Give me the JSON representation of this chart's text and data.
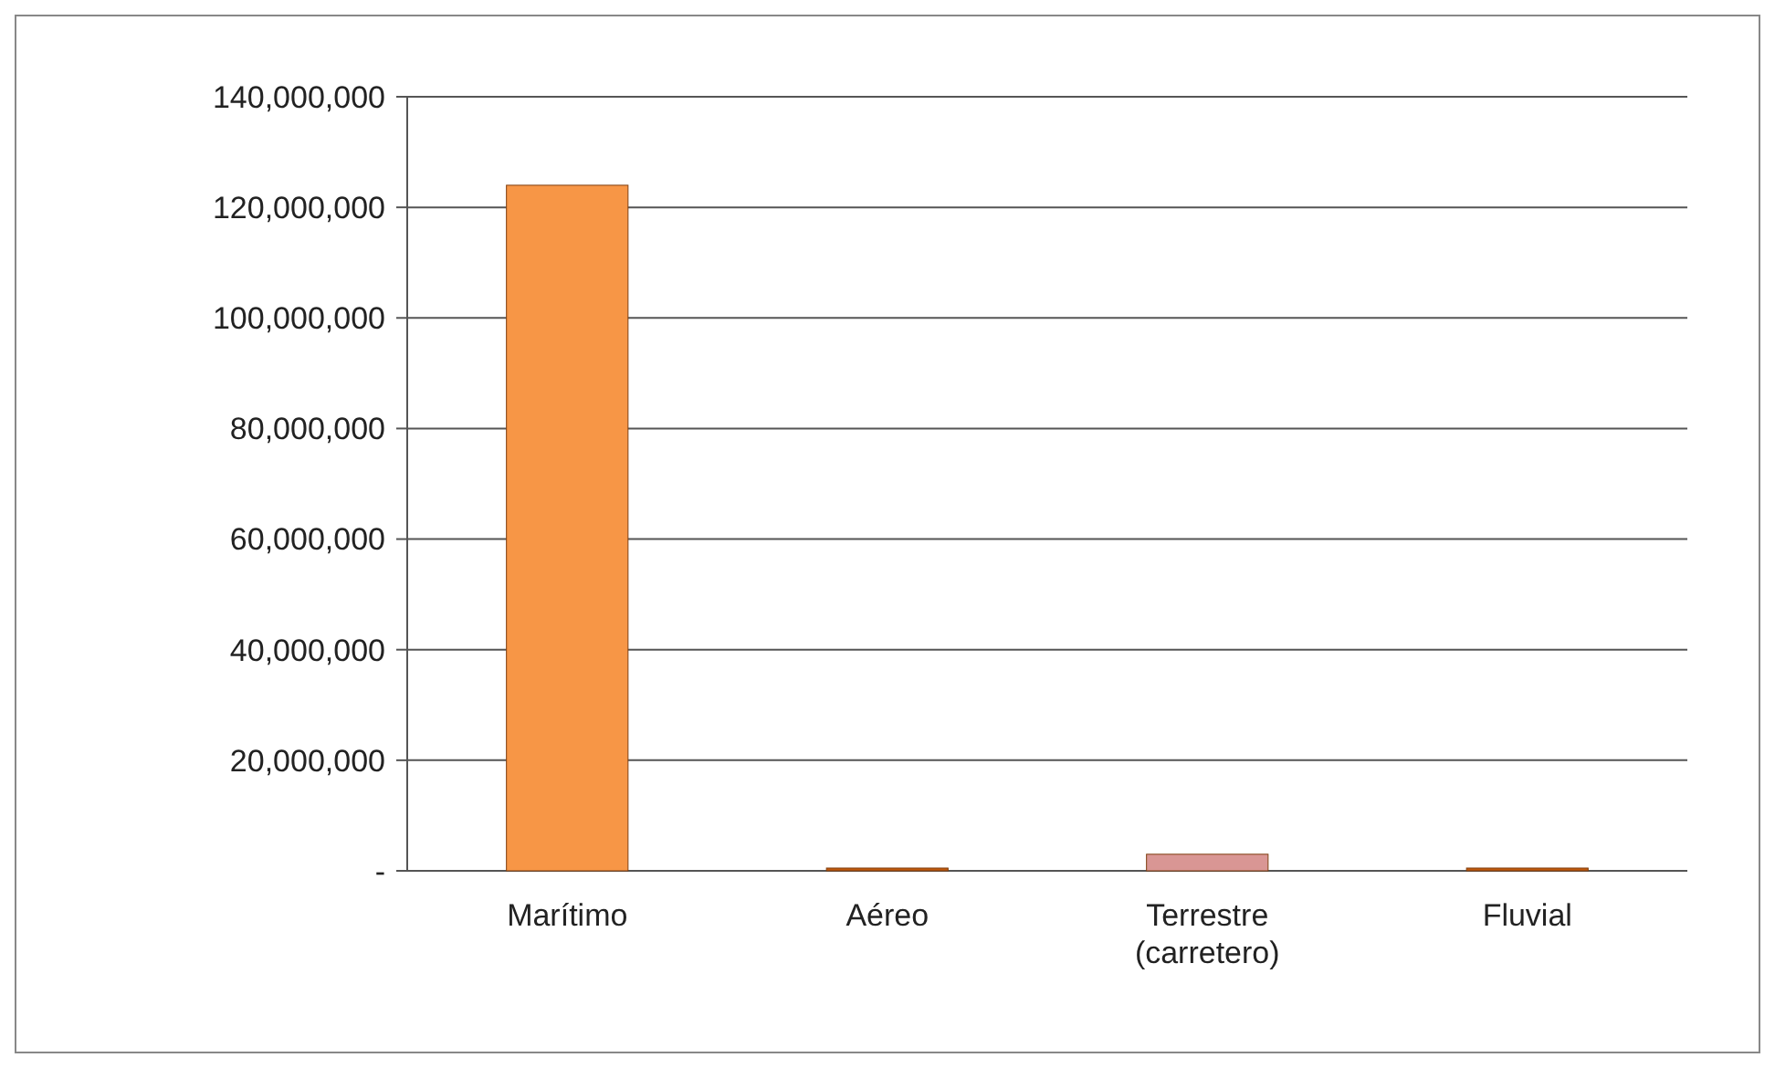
{
  "chart_data": {
    "type": "bar",
    "categories": [
      "Marítimo",
      "Aéreo",
      "Terrestre\n(carretero)",
      "Fluvial"
    ],
    "values": [
      124000000,
      500000,
      3000000,
      500000
    ],
    "colors": [
      "#f79646",
      "#c0590c",
      "#d99694",
      "#c0590c"
    ],
    "ylim": [
      0,
      140000000
    ],
    "yticks": [
      {
        "value": 0,
        "label": "-"
      },
      {
        "value": 20000000,
        "label": "20,000,000"
      },
      {
        "value": 40000000,
        "label": "40,000,000"
      },
      {
        "value": 60000000,
        "label": "60,000,000"
      },
      {
        "value": 80000000,
        "label": "80,000,000"
      },
      {
        "value": 100000000,
        "label": "100,000,000"
      },
      {
        "value": 120000000,
        "label": "120,000,000"
      },
      {
        "value": 140000000,
        "label": "140,000,000"
      }
    ],
    "grid": "y"
  }
}
